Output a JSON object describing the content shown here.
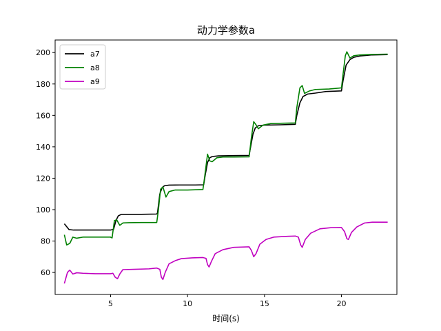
{
  "chart_data": {
    "type": "line",
    "title": "动力学参数a",
    "xlabel": "时间(s)",
    "ylabel": "",
    "xlim": [
      1.4,
      23.6
    ],
    "ylim": [
      46,
      208
    ],
    "xticks": [
      5,
      10,
      15,
      20
    ],
    "yticks": [
      60,
      80,
      100,
      120,
      140,
      160,
      180,
      200
    ],
    "grid": false,
    "legend_position": "upper-left",
    "series": [
      {
        "name": "a7",
        "color": "#000000",
        "points": [
          [
            2.0,
            91
          ],
          [
            2.3,
            87.3
          ],
          [
            2.6,
            87
          ],
          [
            3.0,
            87
          ],
          [
            3.5,
            87
          ],
          [
            4.0,
            87
          ],
          [
            4.5,
            87
          ],
          [
            5.0,
            87
          ],
          [
            5.2,
            87.5
          ],
          [
            5.35,
            93
          ],
          [
            5.5,
            96
          ],
          [
            5.7,
            97
          ],
          [
            6.0,
            97
          ],
          [
            7.0,
            97
          ],
          [
            8.0,
            97.2
          ],
          [
            8.05,
            98
          ],
          [
            8.2,
            110
          ],
          [
            8.35,
            114
          ],
          [
            8.5,
            115.2
          ],
          [
            8.8,
            115.6
          ],
          [
            9.5,
            115.7
          ],
          [
            10.5,
            115.7
          ],
          [
            11.05,
            115.8
          ],
          [
            11.15,
            122
          ],
          [
            11.3,
            130
          ],
          [
            11.45,
            133
          ],
          [
            11.6,
            133.8
          ],
          [
            12.0,
            134.2
          ],
          [
            13.0,
            134.4
          ],
          [
            14.0,
            134.5
          ],
          [
            14.1,
            140
          ],
          [
            14.25,
            148
          ],
          [
            14.4,
            152
          ],
          [
            14.6,
            153.4
          ],
          [
            15.0,
            153.8
          ],
          [
            16.0,
            154
          ],
          [
            17.0,
            154.3
          ],
          [
            17.1,
            160
          ],
          [
            17.3,
            168
          ],
          [
            17.5,
            172
          ],
          [
            17.8,
            173.6
          ],
          [
            18.3,
            174.2
          ],
          [
            19.0,
            175.2
          ],
          [
            20.0,
            175.6
          ],
          [
            20.1,
            182
          ],
          [
            20.3,
            192
          ],
          [
            20.55,
            195.5
          ],
          [
            20.8,
            197
          ],
          [
            21.2,
            197.8
          ],
          [
            22.0,
            198.5
          ],
          [
            23.0,
            198.7
          ]
        ]
      },
      {
        "name": "a8",
        "color": "#008000",
        "points": [
          [
            2.0,
            84
          ],
          [
            2.15,
            77.5
          ],
          [
            2.35,
            78.5
          ],
          [
            2.55,
            82.5
          ],
          [
            2.8,
            81.8
          ],
          [
            3.2,
            82.5
          ],
          [
            4.0,
            82.5
          ],
          [
            5.0,
            82.5
          ],
          [
            5.1,
            82
          ],
          [
            5.25,
            93
          ],
          [
            5.4,
            93.5
          ],
          [
            5.6,
            90
          ],
          [
            5.8,
            91.5
          ],
          [
            6.2,
            91.7
          ],
          [
            7.0,
            91.8
          ],
          [
            8.0,
            91.8
          ],
          [
            8.1,
            99
          ],
          [
            8.25,
            113
          ],
          [
            8.4,
            114.5
          ],
          [
            8.6,
            108
          ],
          [
            8.8,
            111.5
          ],
          [
            9.2,
            112.5
          ],
          [
            10.0,
            112.5
          ],
          [
            11.0,
            112.8
          ],
          [
            11.1,
            120
          ],
          [
            11.3,
            135.3
          ],
          [
            11.45,
            131
          ],
          [
            11.6,
            130.5
          ],
          [
            11.9,
            133
          ],
          [
            12.3,
            133.5
          ],
          [
            13.0,
            133.5
          ],
          [
            14.0,
            133.6
          ],
          [
            14.15,
            146
          ],
          [
            14.3,
            156
          ],
          [
            14.45,
            154
          ],
          [
            14.6,
            151.5
          ],
          [
            14.9,
            153.8
          ],
          [
            15.4,
            154.8
          ],
          [
            16.2,
            155
          ],
          [
            17.0,
            155.2
          ],
          [
            17.1,
            165
          ],
          [
            17.3,
            177.5
          ],
          [
            17.45,
            179
          ],
          [
            17.6,
            174
          ],
          [
            17.9,
            175.5
          ],
          [
            18.3,
            176.5
          ],
          [
            19.2,
            176.8
          ],
          [
            20.0,
            177.5
          ],
          [
            20.1,
            186
          ],
          [
            20.25,
            198
          ],
          [
            20.35,
            200.5
          ],
          [
            20.55,
            196.5
          ],
          [
            20.8,
            198
          ],
          [
            21.2,
            198.5
          ],
          [
            22.0,
            198.8
          ],
          [
            23.0,
            199
          ]
        ]
      },
      {
        "name": "a9",
        "color": "#c000c0",
        "points": [
          [
            2.0,
            53
          ],
          [
            2.2,
            60
          ],
          [
            2.35,
            61.5
          ],
          [
            2.55,
            59
          ],
          [
            2.8,
            59.8
          ],
          [
            3.2,
            59.5
          ],
          [
            4.0,
            59.2
          ],
          [
            5.0,
            59.2
          ],
          [
            5.15,
            59.5
          ],
          [
            5.3,
            57
          ],
          [
            5.45,
            56
          ],
          [
            5.6,
            59
          ],
          [
            5.8,
            61.8
          ],
          [
            6.5,
            62
          ],
          [
            7.5,
            62.3
          ],
          [
            8.0,
            62.8
          ],
          [
            8.2,
            62
          ],
          [
            8.3,
            57
          ],
          [
            8.4,
            55.5
          ],
          [
            8.55,
            60
          ],
          [
            8.8,
            65.5
          ],
          [
            9.2,
            67.5
          ],
          [
            9.6,
            68.8
          ],
          [
            10.3,
            69.3
          ],
          [
            11.0,
            69.5
          ],
          [
            11.2,
            69
          ],
          [
            11.3,
            65
          ],
          [
            11.4,
            63.5
          ],
          [
            11.55,
            67
          ],
          [
            11.8,
            72
          ],
          [
            12.3,
            74.5
          ],
          [
            13.0,
            76
          ],
          [
            14.0,
            76.3
          ],
          [
            14.15,
            74
          ],
          [
            14.3,
            70
          ],
          [
            14.45,
            72
          ],
          [
            14.7,
            78
          ],
          [
            15.1,
            81
          ],
          [
            15.6,
            82.5
          ],
          [
            16.5,
            83
          ],
          [
            17.0,
            83.2
          ],
          [
            17.2,
            82.5
          ],
          [
            17.35,
            77.5
          ],
          [
            17.45,
            76
          ],
          [
            17.65,
            81
          ],
          [
            18.0,
            85
          ],
          [
            18.6,
            87.8
          ],
          [
            19.3,
            88.5
          ],
          [
            20.0,
            88.6
          ],
          [
            20.2,
            86
          ],
          [
            20.35,
            81.5
          ],
          [
            20.45,
            81
          ],
          [
            20.65,
            85.5
          ],
          [
            21.0,
            89
          ],
          [
            21.5,
            91.5
          ],
          [
            22.0,
            92
          ],
          [
            23.0,
            92
          ]
        ]
      }
    ]
  }
}
